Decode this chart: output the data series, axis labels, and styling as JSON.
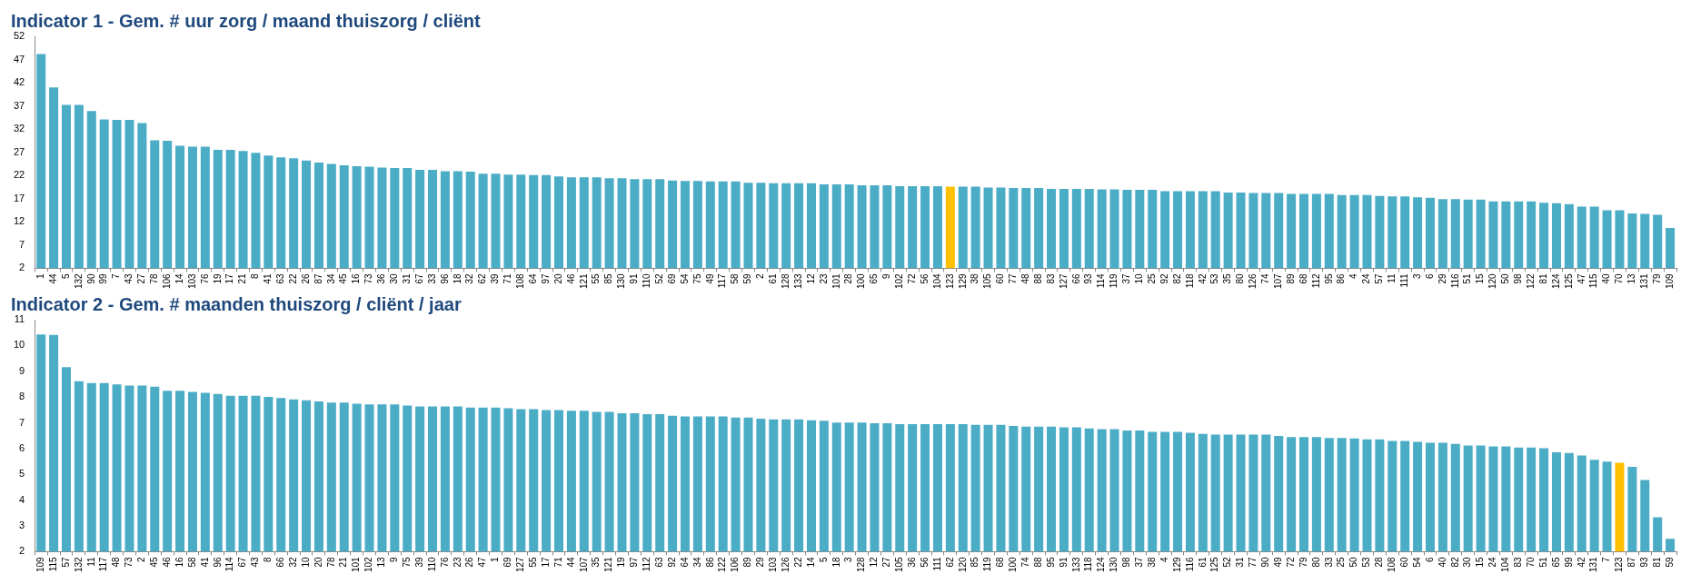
{
  "chart_data": [
    {
      "type": "bar",
      "title": "Indicator 1 - Gem. # uur zorg / maand thuiszorg / cliënt",
      "categories": [
        "1",
        "44",
        "5",
        "132",
        "90",
        "99",
        "7",
        "43",
        "27",
        "78",
        "106",
        "14",
        "103",
        "76",
        "19",
        "17",
        "21",
        "8",
        "41",
        "63",
        "22",
        "26",
        "87",
        "34",
        "45",
        "16",
        "73",
        "36",
        "30",
        "31",
        "67",
        "33",
        "96",
        "18",
        "32",
        "62",
        "39",
        "71",
        "108",
        "64",
        "97",
        "20",
        "46",
        "121",
        "55",
        "85",
        "130",
        "91",
        "110",
        "52",
        "69",
        "54",
        "75",
        "49",
        "117",
        "58",
        "59",
        "2",
        "61",
        "128",
        "133",
        "12",
        "23",
        "101",
        "28",
        "100",
        "65",
        "9",
        "102",
        "72",
        "56",
        "104",
        "123",
        "129",
        "38",
        "105",
        "60",
        "77",
        "48",
        "88",
        "83",
        "127",
        "66",
        "93",
        "114",
        "119",
        "37",
        "10",
        "25",
        "92",
        "82",
        "118",
        "42",
        "53",
        "35",
        "80",
        "126",
        "74",
        "107",
        "89",
        "68",
        "112",
        "95",
        "86",
        "4",
        "24",
        "57",
        "11",
        "111",
        "3",
        "6",
        "29",
        "116",
        "51",
        "15",
        "120",
        "50",
        "98",
        "122",
        "81",
        "124",
        "125",
        "47",
        "115",
        "40",
        "70",
        "13",
        "131",
        "79",
        "109"
      ],
      "values": [
        48.2,
        41.0,
        37.2,
        37.2,
        35.9,
        34.1,
        34.0,
        34.0,
        33.3,
        29.6,
        29.5,
        28.4,
        28.2,
        28.2,
        27.5,
        27.5,
        27.3,
        26.9,
        26.3,
        25.9,
        25.7,
        25.2,
        24.8,
        24.5,
        24.2,
        24.0,
        23.9,
        23.7,
        23.6,
        23.6,
        23.2,
        23.2,
        22.9,
        22.9,
        22.8,
        22.4,
        22.4,
        22.2,
        22.2,
        22.1,
        22.1,
        21.8,
        21.6,
        21.6,
        21.6,
        21.4,
        21.4,
        21.2,
        21.2,
        21.2,
        20.9,
        20.8,
        20.8,
        20.7,
        20.7,
        20.7,
        20.4,
        20.4,
        20.3,
        20.3,
        20.3,
        20.3,
        20.1,
        20.1,
        20.1,
        19.9,
        19.9,
        19.9,
        19.7,
        19.7,
        19.7,
        19.7,
        19.6,
        19.6,
        19.6,
        19.4,
        19.4,
        19.3,
        19.3,
        19.3,
        19.1,
        19.1,
        19.1,
        19.1,
        19.0,
        19.0,
        18.9,
        18.9,
        18.9,
        18.6,
        18.6,
        18.6,
        18.6,
        18.6,
        18.3,
        18.3,
        18.2,
        18.2,
        18.2,
        18.0,
        18.0,
        18.0,
        18.0,
        17.8,
        17.8,
        17.8,
        17.6,
        17.5,
        17.5,
        17.3,
        17.2,
        16.9,
        16.9,
        16.8,
        16.8,
        16.4,
        16.4,
        16.4,
        16.4,
        16.1,
        16.0,
        15.8,
        15.3,
        15.3,
        14.5,
        14.5,
        13.8,
        13.7,
        13.5,
        10.7
      ],
      "colors": [
        "#4bacc6",
        "#4bacc6",
        "#4bacc6",
        "#4bacc6",
        "#4bacc6",
        "#4bacc6",
        "#4bacc6",
        "#4bacc6",
        "#4bacc6",
        "#4bacc6",
        "#4bacc6",
        "#4bacc6",
        "#4bacc6",
        "#4bacc6",
        "#4bacc6",
        "#4bacc6",
        "#4bacc6",
        "#4bacc6",
        "#4bacc6",
        "#4bacc6",
        "#4bacc6",
        "#4bacc6",
        "#4bacc6",
        "#4bacc6",
        "#4bacc6",
        "#4bacc6",
        "#4bacc6",
        "#4bacc6",
        "#4bacc6",
        "#4bacc6",
        "#4bacc6",
        "#4bacc6",
        "#4bacc6",
        "#4bacc6",
        "#4bacc6",
        "#4bacc6",
        "#4bacc6",
        "#4bacc6",
        "#4bacc6",
        "#4bacc6",
        "#4bacc6",
        "#4bacc6",
        "#4bacc6",
        "#4bacc6",
        "#4bacc6",
        "#4bacc6",
        "#4bacc6",
        "#4bacc6",
        "#4bacc6",
        "#4bacc6",
        "#4bacc6",
        "#4bacc6",
        "#4bacc6",
        "#4bacc6",
        "#4bacc6",
        "#4bacc6",
        "#4bacc6",
        "#4bacc6",
        "#4bacc6",
        "#4bacc6",
        "#4bacc6",
        "#4bacc6",
        "#4bacc6",
        "#4bacc6",
        "#4bacc6",
        "#4bacc6",
        "#4bacc6",
        "#4bacc6",
        "#4bacc6",
        "#4bacc6",
        "#4bacc6",
        "#4bacc6",
        "#ffc000",
        "#4bacc6",
        "#4bacc6",
        "#4bacc6",
        "#4bacc6",
        "#4bacc6",
        "#4bacc6",
        "#4bacc6",
        "#4bacc6",
        "#4bacc6",
        "#4bacc6",
        "#4bacc6",
        "#4bacc6",
        "#4bacc6",
        "#4bacc6",
        "#4bacc6",
        "#4bacc6",
        "#4bacc6",
        "#4bacc6",
        "#4bacc6",
        "#4bacc6",
        "#4bacc6",
        "#4bacc6",
        "#4bacc6",
        "#4bacc6",
        "#4bacc6",
        "#4bacc6",
        "#4bacc6",
        "#4bacc6",
        "#4bacc6",
        "#4bacc6",
        "#4bacc6",
        "#4bacc6",
        "#4bacc6",
        "#4bacc6",
        "#4bacc6",
        "#4bacc6",
        "#4bacc6",
        "#4bacc6",
        "#4bacc6",
        "#4bacc6",
        "#4bacc6",
        "#4bacc6",
        "#4bacc6",
        "#4bacc6",
        "#4bacc6",
        "#4bacc6",
        "#4bacc6",
        "#4bacc6",
        "#4bacc6",
        "#4bacc6",
        "#4bacc6",
        "#4bacc6",
        "#4bacc6",
        "#4bacc6",
        "#4bacc6",
        "#4bacc6",
        "#4bacc6"
      ],
      "ylim": [
        2,
        52
      ],
      "yticks": [
        2,
        7,
        12,
        17,
        22,
        27,
        32,
        37,
        42,
        47,
        52
      ]
    },
    {
      "type": "bar",
      "title": "Indicator 2 - Gem. # maanden thuiszorg / cliënt / jaar",
      "categories": [
        "109",
        "115",
        "57",
        "132",
        "11",
        "117",
        "48",
        "73",
        "2",
        "45",
        "46",
        "16",
        "58",
        "41",
        "96",
        "114",
        "67",
        "43",
        "8",
        "66",
        "32",
        "10",
        "20",
        "78",
        "21",
        "101",
        "102",
        "13",
        "9",
        "75",
        "39",
        "110",
        "76",
        "23",
        "26",
        "47",
        "1",
        "69",
        "127",
        "55",
        "17",
        "71",
        "44",
        "107",
        "35",
        "121",
        "19",
        "97",
        "112",
        "63",
        "92",
        "64",
        "34",
        "86",
        "122",
        "106",
        "89",
        "29",
        "103",
        "126",
        "22",
        "14",
        "5",
        "18",
        "3",
        "128",
        "12",
        "27",
        "105",
        "36",
        "56",
        "111",
        "62",
        "120",
        "85",
        "119",
        "68",
        "100",
        "74",
        "88",
        "95",
        "91",
        "133",
        "118",
        "124",
        "130",
        "98",
        "37",
        "38",
        "4",
        "129",
        "116",
        "61",
        "125",
        "52",
        "31",
        "77",
        "90",
        "49",
        "72",
        "79",
        "80",
        "33",
        "25",
        "50",
        "53",
        "28",
        "108",
        "60",
        "54",
        "6",
        "40",
        "82",
        "30",
        "15",
        "24",
        "104",
        "83",
        "70",
        "51",
        "65",
        "99",
        "42",
        "131",
        "7",
        "123",
        "87",
        "93",
        "81",
        "59"
      ],
      "values": [
        10.43,
        10.41,
        9.16,
        8.61,
        8.54,
        8.54,
        8.49,
        8.44,
        8.44,
        8.4,
        8.24,
        8.24,
        8.2,
        8.16,
        8.12,
        8.05,
        8.05,
        8.05,
        8.0,
        7.96,
        7.91,
        7.87,
        7.83,
        7.78,
        7.78,
        7.74,
        7.71,
        7.71,
        7.71,
        7.67,
        7.63,
        7.63,
        7.63,
        7.63,
        7.59,
        7.59,
        7.59,
        7.56,
        7.53,
        7.53,
        7.49,
        7.49,
        7.47,
        7.47,
        7.42,
        7.42,
        7.37,
        7.37,
        7.33,
        7.33,
        7.27,
        7.25,
        7.25,
        7.25,
        7.25,
        7.2,
        7.2,
        7.16,
        7.13,
        7.13,
        7.13,
        7.1,
        7.08,
        7.01,
        7.01,
        7.01,
        6.98,
        6.98,
        6.95,
        6.95,
        6.95,
        6.95,
        6.95,
        6.95,
        6.92,
        6.92,
        6.92,
        6.88,
        6.85,
        6.85,
        6.85,
        6.82,
        6.82,
        6.78,
        6.75,
        6.75,
        6.7,
        6.7,
        6.65,
        6.65,
        6.65,
        6.61,
        6.57,
        6.54,
        6.54,
        6.54,
        6.54,
        6.54,
        6.49,
        6.44,
        6.44,
        6.44,
        6.41,
        6.41,
        6.39,
        6.36,
        6.36,
        6.29,
        6.29,
        6.26,
        6.22,
        6.22,
        6.18,
        6.12,
        6.12,
        6.08,
        6.08,
        6.04,
        6.04,
        6.01,
        5.85,
        5.83,
        5.73,
        5.56,
        5.49,
        5.45,
        5.29,
        4.78,
        3.33,
        2.5
      ],
      "colors": [
        "#4bacc6",
        "#4bacc6",
        "#4bacc6",
        "#4bacc6",
        "#4bacc6",
        "#4bacc6",
        "#4bacc6",
        "#4bacc6",
        "#4bacc6",
        "#4bacc6",
        "#4bacc6",
        "#4bacc6",
        "#4bacc6",
        "#4bacc6",
        "#4bacc6",
        "#4bacc6",
        "#4bacc6",
        "#4bacc6",
        "#4bacc6",
        "#4bacc6",
        "#4bacc6",
        "#4bacc6",
        "#4bacc6",
        "#4bacc6",
        "#4bacc6",
        "#4bacc6",
        "#4bacc6",
        "#4bacc6",
        "#4bacc6",
        "#4bacc6",
        "#4bacc6",
        "#4bacc6",
        "#4bacc6",
        "#4bacc6",
        "#4bacc6",
        "#4bacc6",
        "#4bacc6",
        "#4bacc6",
        "#4bacc6",
        "#4bacc6",
        "#4bacc6",
        "#4bacc6",
        "#4bacc6",
        "#4bacc6",
        "#4bacc6",
        "#4bacc6",
        "#4bacc6",
        "#4bacc6",
        "#4bacc6",
        "#4bacc6",
        "#4bacc6",
        "#4bacc6",
        "#4bacc6",
        "#4bacc6",
        "#4bacc6",
        "#4bacc6",
        "#4bacc6",
        "#4bacc6",
        "#4bacc6",
        "#4bacc6",
        "#4bacc6",
        "#4bacc6",
        "#4bacc6",
        "#4bacc6",
        "#4bacc6",
        "#4bacc6",
        "#4bacc6",
        "#4bacc6",
        "#4bacc6",
        "#4bacc6",
        "#4bacc6",
        "#4bacc6",
        "#4bacc6",
        "#4bacc6",
        "#4bacc6",
        "#4bacc6",
        "#4bacc6",
        "#4bacc6",
        "#4bacc6",
        "#4bacc6",
        "#4bacc6",
        "#4bacc6",
        "#4bacc6",
        "#4bacc6",
        "#4bacc6",
        "#4bacc6",
        "#4bacc6",
        "#4bacc6",
        "#4bacc6",
        "#4bacc6",
        "#4bacc6",
        "#4bacc6",
        "#4bacc6",
        "#4bacc6",
        "#4bacc6",
        "#4bacc6",
        "#4bacc6",
        "#4bacc6",
        "#4bacc6",
        "#4bacc6",
        "#4bacc6",
        "#4bacc6",
        "#4bacc6",
        "#4bacc6",
        "#4bacc6",
        "#4bacc6",
        "#4bacc6",
        "#4bacc6",
        "#4bacc6",
        "#4bacc6",
        "#4bacc6",
        "#4bacc6",
        "#4bacc6",
        "#4bacc6",
        "#4bacc6",
        "#4bacc6",
        "#4bacc6",
        "#4bacc6",
        "#4bacc6",
        "#4bacc6",
        "#4bacc6",
        "#4bacc6",
        "#4bacc6",
        "#4bacc6",
        "#4bacc6",
        "#ffc000",
        "#4bacc6",
        "#4bacc6",
        "#4bacc6",
        "#4bacc6"
      ],
      "ylim": [
        2,
        11
      ],
      "yticks": [
        2,
        3,
        4,
        5,
        6,
        7,
        8,
        9,
        10,
        11
      ]
    }
  ]
}
